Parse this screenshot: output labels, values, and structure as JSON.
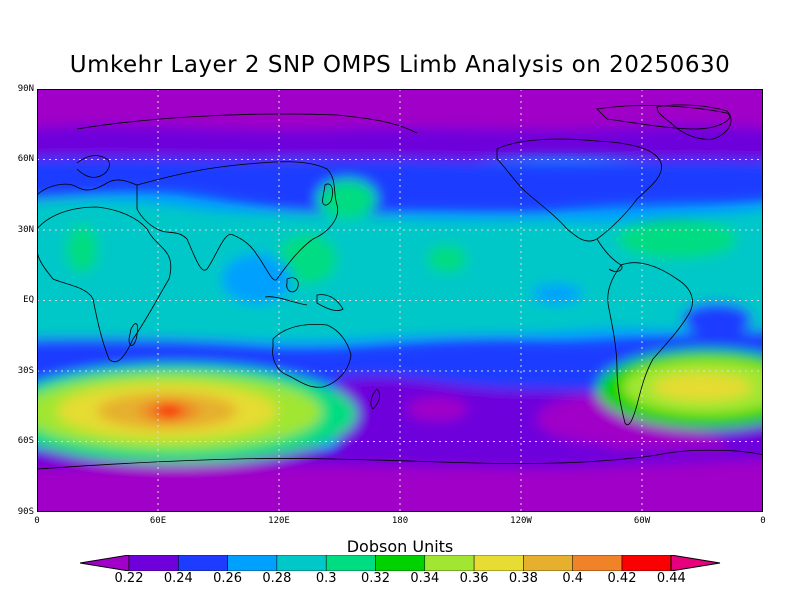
{
  "title": "Umkehr Layer 2 SNP OMPS Limb Analysis on 20250630",
  "lat_labels": [
    "90N",
    "60N",
    "30N",
    "EQ",
    "30S",
    "60S",
    "90S"
  ],
  "lon_labels": [
    "0",
    "60E",
    "120E",
    "180",
    "120W",
    "60W",
    "0"
  ],
  "colorbar": {
    "title": "Dobson Units",
    "labels": [
      "0.22",
      "0.24",
      "0.26",
      "0.28",
      "0.3",
      "0.32",
      "0.34",
      "0.36",
      "0.38",
      "0.4",
      "0.42",
      "0.44"
    ],
    "colors": [
      "#a000c8",
      "#6e00dc",
      "#1e3cff",
      "#00a0ff",
      "#00c8c8",
      "#00dc82",
      "#00d200",
      "#a0e632",
      "#e6dc32",
      "#e6af2d",
      "#f08228",
      "#fa0000",
      "#e6007d"
    ]
  },
  "chart_data": {
    "type": "heatmap",
    "title": "Umkehr Layer 2 SNP OMPS Limb Analysis on 20250630",
    "xlabel": "",
    "ylabel": "",
    "units": "Dobson Units",
    "xlim": [
      0,
      360
    ],
    "ylim": [
      -90,
      90
    ],
    "levels": [
      0.22,
      0.24,
      0.26,
      0.28,
      0.3,
      0.32,
      0.34,
      0.36,
      0.38,
      0.4,
      0.42,
      0.44
    ],
    "features": [
      {
        "lon": 67,
        "lat": -45,
        "value": 0.44
      },
      {
        "lon": 67,
        "lat": -45,
        "value": 0.42
      },
      {
        "lon": 60,
        "lat": -45,
        "value": 0.38
      },
      {
        "lon": 310,
        "lat": -40,
        "value": 0.36
      },
      {
        "lon": 20,
        "lat": 20,
        "value": 0.32
      },
      {
        "lon": 200,
        "lat": 17,
        "value": 0.32
      },
      {
        "lon": 0,
        "lat": 80,
        "value": 0.22
      },
      {
        "lon": 180,
        "lat": -70,
        "value": 0.24
      }
    ]
  }
}
